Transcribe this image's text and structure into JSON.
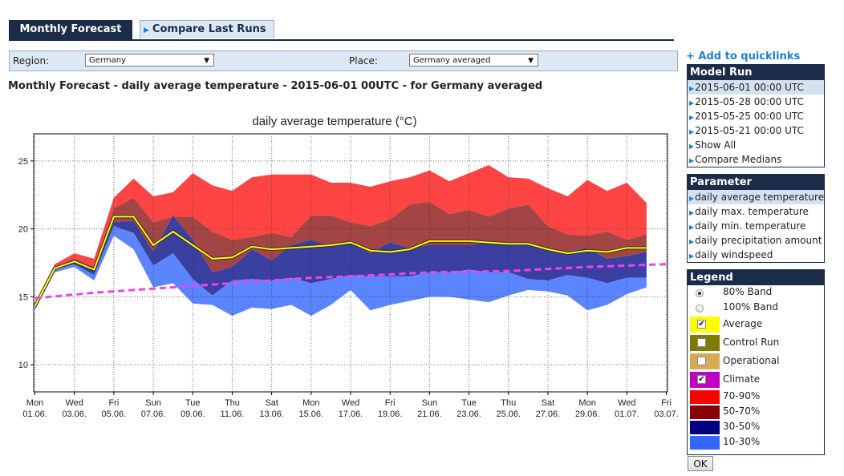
{
  "tabs": {
    "active": "Monthly Forecast",
    "inactive": "Compare Last Runs"
  },
  "filters": {
    "region_label": "Region:",
    "region_value": "Germany",
    "place_label": "Place:",
    "place_value": "Germany averaged"
  },
  "heading": "Monthly Forecast - daily average temperature - 2015-06-01 00UTC - for Germany averaged",
  "quicklinks": "+ Add to quicklinks",
  "model_run": {
    "title": "Model Run",
    "items": [
      "2015-06-01 00:00 UTC",
      "2015-05-28 00:00 UTC",
      "2015-05-25 00:00 UTC",
      "2015-05-21 00:00 UTC",
      "Show All",
      "Compare Medians"
    ]
  },
  "parameter": {
    "title": "Parameter",
    "items": [
      "daily average temperature",
      "daily max. temperature",
      "daily min. temperature",
      "daily precipitation amount",
      "daily windspeed"
    ]
  },
  "legend": {
    "title": "Legend",
    "radio_80": "80% Band",
    "radio_100": "100% Band",
    "average": "Average",
    "control": "Control Run",
    "operational": "Operational",
    "climate": "Climate",
    "b7090": "70-90%",
    "b5070": "50-70%",
    "b3050": "30-50%",
    "b1030": "10-30%"
  },
  "ok_label": "OK",
  "colors": {
    "band_70_90": "#ff4444",
    "band_50_70": "#a34545",
    "band_30_50": "#3a3fa0",
    "band_10_30": "#5b85ff",
    "average": "#ffff00",
    "average_swatch": "#ffff00",
    "control": "#807a00",
    "operational": "#d6ab52",
    "climate": "#ee44ee",
    "climate_swatch": "#c000c0",
    "swatch_70_90": "#ff0000",
    "swatch_50_70": "#880000",
    "swatch_30_50": "#000080",
    "swatch_10_30": "#3366ff"
  },
  "chart_data": {
    "type": "area",
    "title": "daily average temperature (°C)",
    "yticks": [
      10,
      15,
      20,
      25
    ],
    "ylim": [
      8,
      27
    ],
    "x_days": [
      "2015-06-01",
      "2015-06-02",
      "2015-06-03",
      "2015-06-04",
      "2015-06-05",
      "2015-06-06",
      "2015-06-07",
      "2015-06-08",
      "2015-06-09",
      "2015-06-10",
      "2015-06-11",
      "2015-06-12",
      "2015-06-13",
      "2015-06-14",
      "2015-06-15",
      "2015-06-16",
      "2015-06-17",
      "2015-06-18",
      "2015-06-19",
      "2015-06-20",
      "2015-06-21",
      "2015-06-22",
      "2015-06-23",
      "2015-06-24",
      "2015-06-25",
      "2015-06-26",
      "2015-06-27",
      "2015-06-28",
      "2015-06-29",
      "2015-06-30",
      "2015-07-01",
      "2015-07-02"
    ],
    "xtick_days": [
      "Mon",
      "Wed",
      "Fri",
      "Sun",
      "Tue",
      "Thu",
      "Sat",
      "Mon",
      "Wed",
      "Fri",
      "Sun",
      "Tue",
      "Thu",
      "Sat",
      "Mon",
      "Wed",
      "Fri"
    ],
    "xtick_dates": [
      "01.06.",
      "03.06.",
      "05.06.",
      "07.06.",
      "09.06.",
      "11.06.",
      "13.06.",
      "15.06.",
      "17.06.",
      "19.06.",
      "21.06.",
      "23.06.",
      "25.06.",
      "27.06.",
      "29.06.",
      "01.07.",
      "03.07."
    ],
    "grid": true,
    "bands": {
      "p10": [
        14.0,
        16.8,
        17.2,
        16.2,
        19.5,
        18.5,
        15.7,
        16.0,
        14.5,
        14.4,
        13.6,
        14.2,
        14.1,
        14.4,
        13.6,
        14.4,
        15.5,
        14.0,
        14.4,
        14.7,
        15.0,
        15.0,
        14.8,
        14.6,
        15.1,
        15.5,
        15.4,
        15.1,
        14.0,
        14.4,
        15.2,
        15.7
      ],
      "p30": [
        14.2,
        17.0,
        17.4,
        16.6,
        20.2,
        19.7,
        17.3,
        18.2,
        16.3,
        15.1,
        16.2,
        16.3,
        16.2,
        16.4,
        16.0,
        16.3,
        16.6,
        16.5,
        16.5,
        16.5,
        16.8,
        16.8,
        17.0,
        16.8,
        16.8,
        16.3,
        16.2,
        16.6,
        16.4,
        16.0,
        16.4,
        16.4
      ],
      "p50": [
        14.3,
        17.1,
        17.6,
        16.9,
        20.5,
        20.6,
        18.3,
        21.0,
        19.2,
        16.8,
        17.2,
        18.5,
        17.7,
        18.8,
        19.2,
        18.7,
        19.0,
        18.2,
        19.0,
        18.6,
        18.8,
        18.8,
        18.8,
        19.0,
        18.9,
        18.8,
        18.6,
        18.3,
        18.6,
        17.8,
        18.0,
        18.3
      ],
      "p70": [
        14.4,
        17.2,
        17.8,
        17.2,
        21.5,
        22.3,
        20.5,
        20.9,
        20.9,
        19.8,
        19.2,
        19.4,
        19.7,
        19.4,
        21.0,
        21.0,
        20.5,
        20.2,
        20.7,
        21.8,
        22.0,
        21.1,
        21.4,
        20.9,
        21.5,
        21.8,
        20.2,
        19.6,
        19.5,
        19.8,
        19.2,
        19.6
      ],
      "p90": [
        14.5,
        17.4,
        18.2,
        17.8,
        22.3,
        23.7,
        22.4,
        22.7,
        24.1,
        23.2,
        22.8,
        23.8,
        24.0,
        24.0,
        24.0,
        23.4,
        23.4,
        23.1,
        23.5,
        23.8,
        24.3,
        23.5,
        24.1,
        24.7,
        23.8,
        23.7,
        23.0,
        22.4,
        23.6,
        22.8,
        23.4,
        21.9
      ]
    },
    "average": [
      14.3,
      17.1,
      17.6,
      17.0,
      20.9,
      20.9,
      18.8,
      19.8,
      18.8,
      17.8,
      17.9,
      18.7,
      18.5,
      18.6,
      18.7,
      18.8,
      19.0,
      18.4,
      18.3,
      18.5,
      19.1,
      19.1,
      19.1,
      19.0,
      18.9,
      18.9,
      18.5,
      18.2,
      18.4,
      18.3,
      18.6,
      18.6
    ],
    "climate": {
      "x_days": [
        "2015-06-01",
        "2015-06-04",
        "2015-06-09",
        "2015-06-11",
        "2015-06-15",
        "2015-06-17",
        "2015-06-21",
        "2015-06-25",
        "2015-06-29",
        "2015-07-03"
      ],
      "values": [
        14.9,
        15.3,
        15.8,
        16.0,
        16.4,
        16.5,
        16.8,
        16.9,
        17.2,
        17.4
      ]
    }
  }
}
